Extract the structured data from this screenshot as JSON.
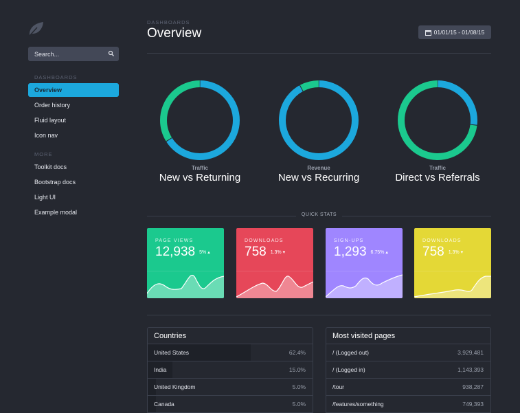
{
  "sidebar": {
    "search_placeholder": "Search...",
    "sections": [
      {
        "heading": "DASHBOARDS",
        "items": [
          {
            "label": "Overview",
            "active": true
          },
          {
            "label": "Order history"
          },
          {
            "label": "Fluid layout"
          },
          {
            "label": "Icon nav"
          }
        ]
      },
      {
        "heading": "MORE",
        "items": [
          {
            "label": "Toolkit docs"
          },
          {
            "label": "Bootstrap docs"
          },
          {
            "label": "Light UI"
          },
          {
            "label": "Example modal"
          }
        ]
      }
    ]
  },
  "header": {
    "breadcrumb": "DASHBOARDS",
    "title": "Overview",
    "date_range": "01/01/15 - 01/08/15"
  },
  "colors": {
    "blue": "#1ca8dd",
    "green": "#1bc98e",
    "red": "#e64759",
    "purple": "#9f86ff",
    "yellow": "#e4d836",
    "accent": "#1ca8dd"
  },
  "donuts": [
    {
      "subtitle": "Traffic",
      "title": "New vs Returning",
      "blue_fraction": 0.66
    },
    {
      "subtitle": "Revenue",
      "title": "New vs Recurring",
      "blue_fraction": 0.92
    },
    {
      "subtitle": "Traffic",
      "title": "Direct vs Referrals",
      "blue_fraction": 0.27
    }
  ],
  "quick_stats": {
    "heading": "QUICK STATS",
    "cards": [
      {
        "label": "PAGE VIEWS",
        "value": "12,938",
        "delta": "5%",
        "trend": "up",
        "color": "#1bc98e"
      },
      {
        "label": "DOWNLOADS",
        "value": "758",
        "delta": "1.3%",
        "trend": "down",
        "color": "#e64759"
      },
      {
        "label": "SIGN-UPS",
        "value": "1,293",
        "delta": "6.75%",
        "trend": "up",
        "color": "#9f86ff"
      },
      {
        "label": "DOWNLOADS",
        "value": "758",
        "delta": "1.3%",
        "trend": "down",
        "color": "#e4d836"
      }
    ]
  },
  "countries": {
    "title": "Countries",
    "rows": [
      {
        "name": "United States",
        "value": "62.4%",
        "pct": 62.4
      },
      {
        "name": "India",
        "value": "15.0%",
        "pct": 15
      },
      {
        "name": "United Kingdom",
        "value": "5.0%",
        "pct": 5
      },
      {
        "name": "Canada",
        "value": "5.0%",
        "pct": 5
      }
    ]
  },
  "pages": {
    "title": "Most visited pages",
    "rows": [
      {
        "name": "/ (Logged out)",
        "value": "3,929,481"
      },
      {
        "name": "/ (Logged in)",
        "value": "1,143,393"
      },
      {
        "name": "/tour",
        "value": "938,287"
      },
      {
        "name": "/features/something",
        "value": "749,393"
      }
    ]
  }
}
